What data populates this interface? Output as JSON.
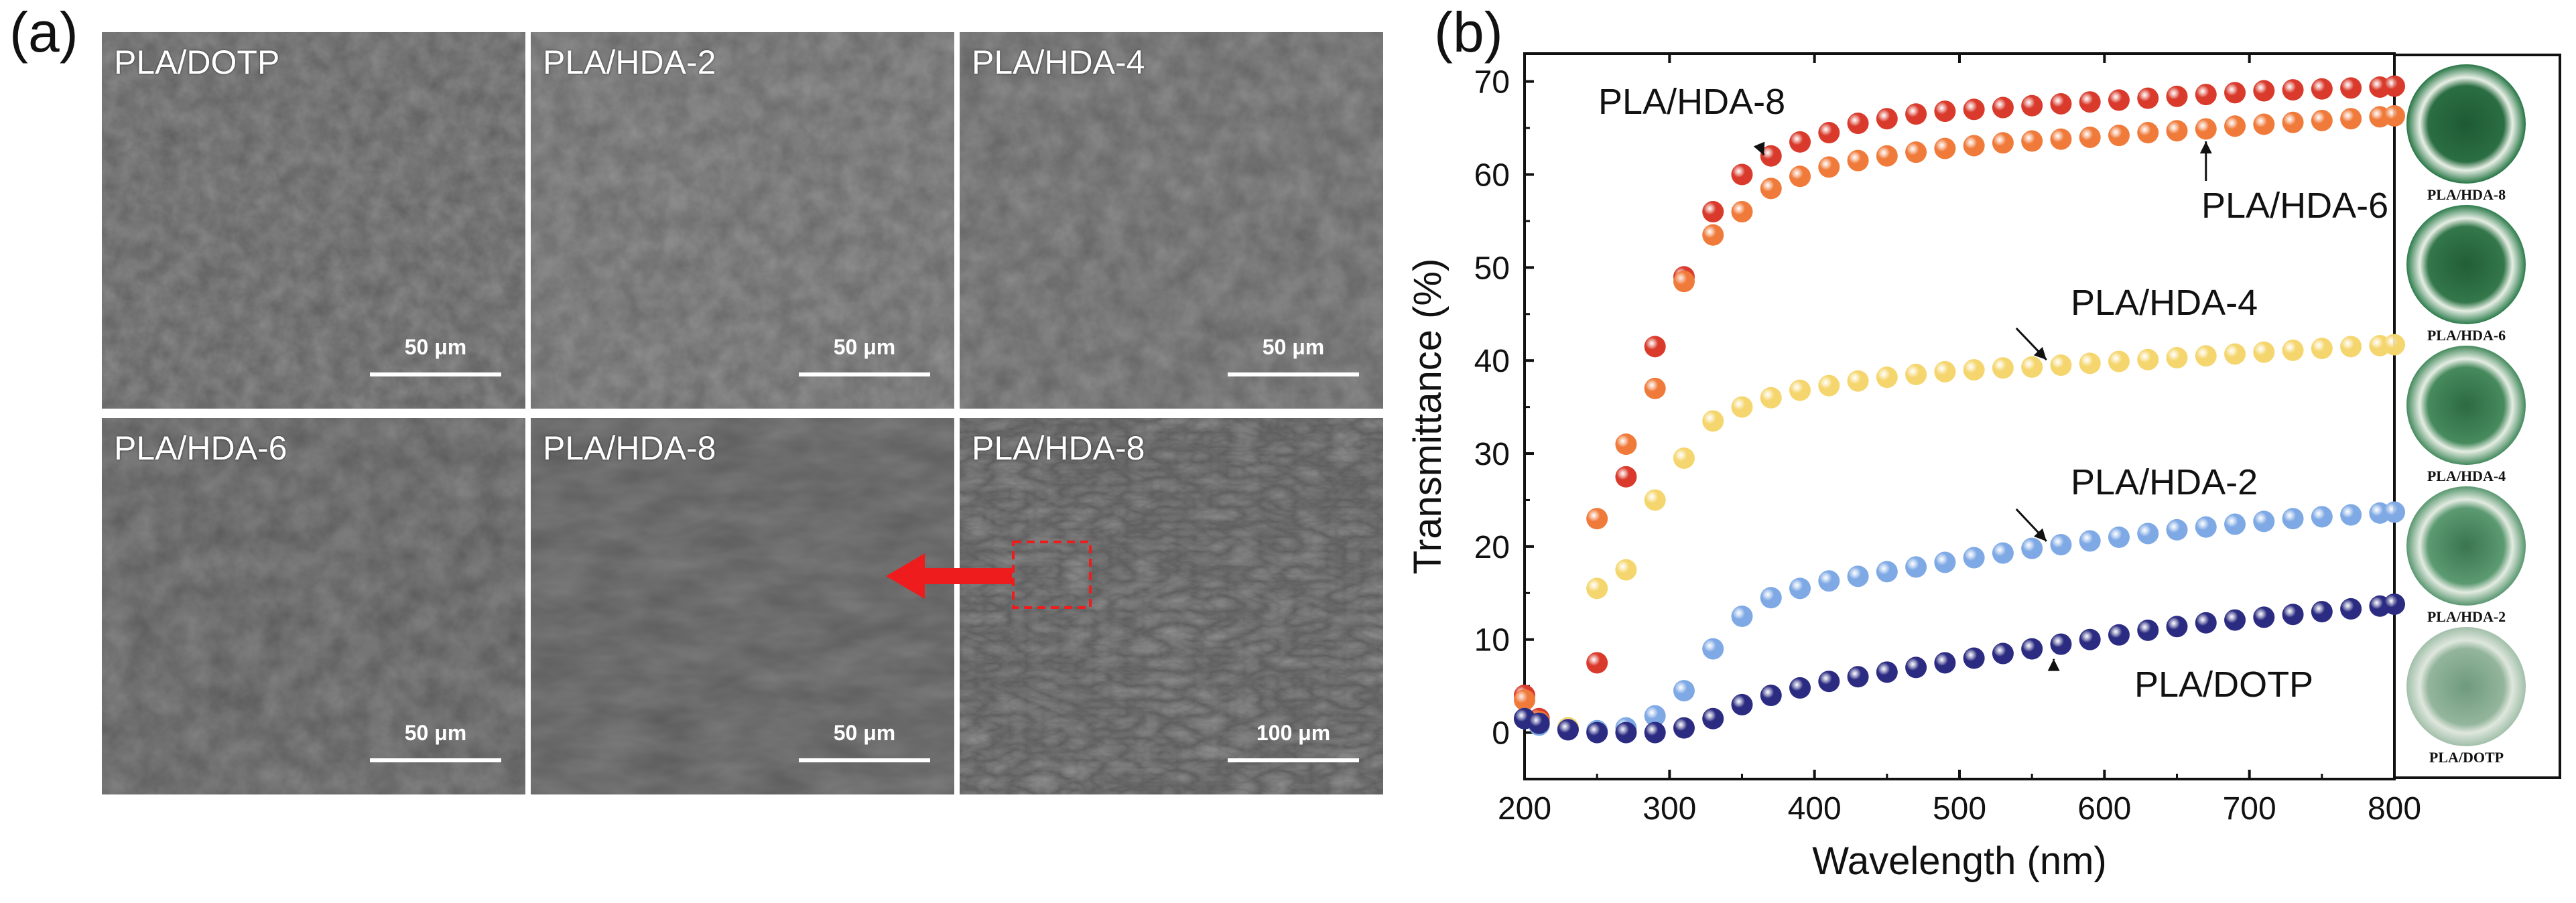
{
  "panel_a": {
    "tag": "(a)",
    "images": [
      {
        "label": "PLA/DOTP",
        "scale": "50 μm"
      },
      {
        "label": "PLA/HDA-2",
        "scale": "50 μm"
      },
      {
        "label": "PLA/HDA-4",
        "scale": "50 μm"
      },
      {
        "label": "PLA/HDA-6",
        "scale": "50 μm"
      },
      {
        "label": "PLA/HDA-8",
        "scale": "50 μm"
      },
      {
        "label": "PLA/HDA-8",
        "scale": "100 μm"
      }
    ],
    "arrow_color": "#ee1c1c"
  },
  "panel_b": {
    "tag": "(b)",
    "photo_labels": [
      "PLA/HDA-8",
      "PLA/HDA-6",
      "PLA/HDA-4",
      "PLA/HDA-2",
      "PLA/DOTP"
    ]
  },
  "chart_data": {
    "type": "scatter",
    "xlabel": "Wavelength (nm)",
    "ylabel": "Transmittance (%)",
    "xlim": [
      200,
      800
    ],
    "ylim": [
      -5,
      73
    ],
    "xticks": [
      200,
      300,
      400,
      500,
      600,
      700,
      800
    ],
    "yticks": [
      0,
      10,
      20,
      30,
      40,
      50,
      60,
      70
    ],
    "x": [
      200,
      210,
      230,
      250,
      270,
      290,
      310,
      330,
      350,
      370,
      390,
      410,
      430,
      450,
      470,
      490,
      510,
      530,
      550,
      570,
      590,
      610,
      630,
      650,
      670,
      690,
      710,
      730,
      750,
      770,
      790,
      800
    ],
    "series": [
      {
        "name": "PLA/HDA-8",
        "color": "#d93a2b",
        "values": [
          4,
          1.5,
          0.5,
          7.5,
          27.5,
          41.5,
          49,
          56,
          60,
          62,
          63.5,
          64.5,
          65.5,
          66,
          66.5,
          66.8,
          67,
          67.2,
          67.4,
          67.6,
          67.8,
          68,
          68.2,
          68.4,
          68.6,
          68.8,
          69,
          69.1,
          69.2,
          69.3,
          69.4,
          69.5
        ]
      },
      {
        "name": "PLA/HDA-6",
        "color": "#f07a3a",
        "values": [
          3.5,
          1.2,
          0.5,
          23,
          31,
          37,
          48.5,
          53.5,
          56,
          58.5,
          59.8,
          60.8,
          61.5,
          62,
          62.4,
          62.8,
          63.1,
          63.4,
          63.6,
          63.8,
          64,
          64.2,
          64.5,
          64.7,
          64.9,
          65.2,
          65.4,
          65.6,
          65.8,
          66,
          66.2,
          66.3
        ]
      },
      {
        "name": "PLA/HDA-4",
        "color": "#f5d66e",
        "values": [
          1.5,
          1,
          0.5,
          15.5,
          17.5,
          25,
          29.5,
          33.5,
          35,
          36,
          36.8,
          37.3,
          37.8,
          38.2,
          38.5,
          38.8,
          39,
          39.2,
          39.3,
          39.5,
          39.7,
          39.9,
          40.1,
          40.3,
          40.5,
          40.7,
          40.9,
          41.1,
          41.3,
          41.5,
          41.6,
          41.7
        ]
      },
      {
        "name": "PLA/HDA-2",
        "color": "#7ea9e5",
        "values": [
          1.5,
          0.8,
          0.3,
          0.2,
          0.5,
          1.8,
          4.5,
          9,
          12.5,
          14.5,
          15.5,
          16.3,
          16.8,
          17.3,
          17.8,
          18.3,
          18.8,
          19.3,
          19.8,
          20.2,
          20.6,
          21,
          21.4,
          21.8,
          22.1,
          22.4,
          22.7,
          23,
          23.2,
          23.4,
          23.6,
          23.7
        ]
      },
      {
        "name": "PLA/DOTP",
        "color": "#2b2b82",
        "values": [
          1.5,
          1,
          0.3,
          0,
          0,
          0,
          0.5,
          1.5,
          3,
          4,
          4.8,
          5.5,
          6,
          6.5,
          7,
          7.5,
          8,
          8.5,
          9,
          9.5,
          10,
          10.5,
          11,
          11.4,
          11.8,
          12.1,
          12.4,
          12.7,
          13,
          13.3,
          13.6,
          13.8
        ]
      }
    ],
    "annotations": [
      {
        "text": "PLA/HDA-8",
        "target": [
          365,
          61.5
        ]
      },
      {
        "text": "PLA/HDA-6",
        "target": [
          670,
          65
        ]
      },
      {
        "text": "PLA/HDA-4",
        "target": [
          560,
          39.5
        ]
      },
      {
        "text": "PLA/HDA-2",
        "target": [
          560,
          20
        ]
      },
      {
        "text": "PLA/DOTP",
        "target": [
          565,
          9.5
        ]
      }
    ]
  }
}
